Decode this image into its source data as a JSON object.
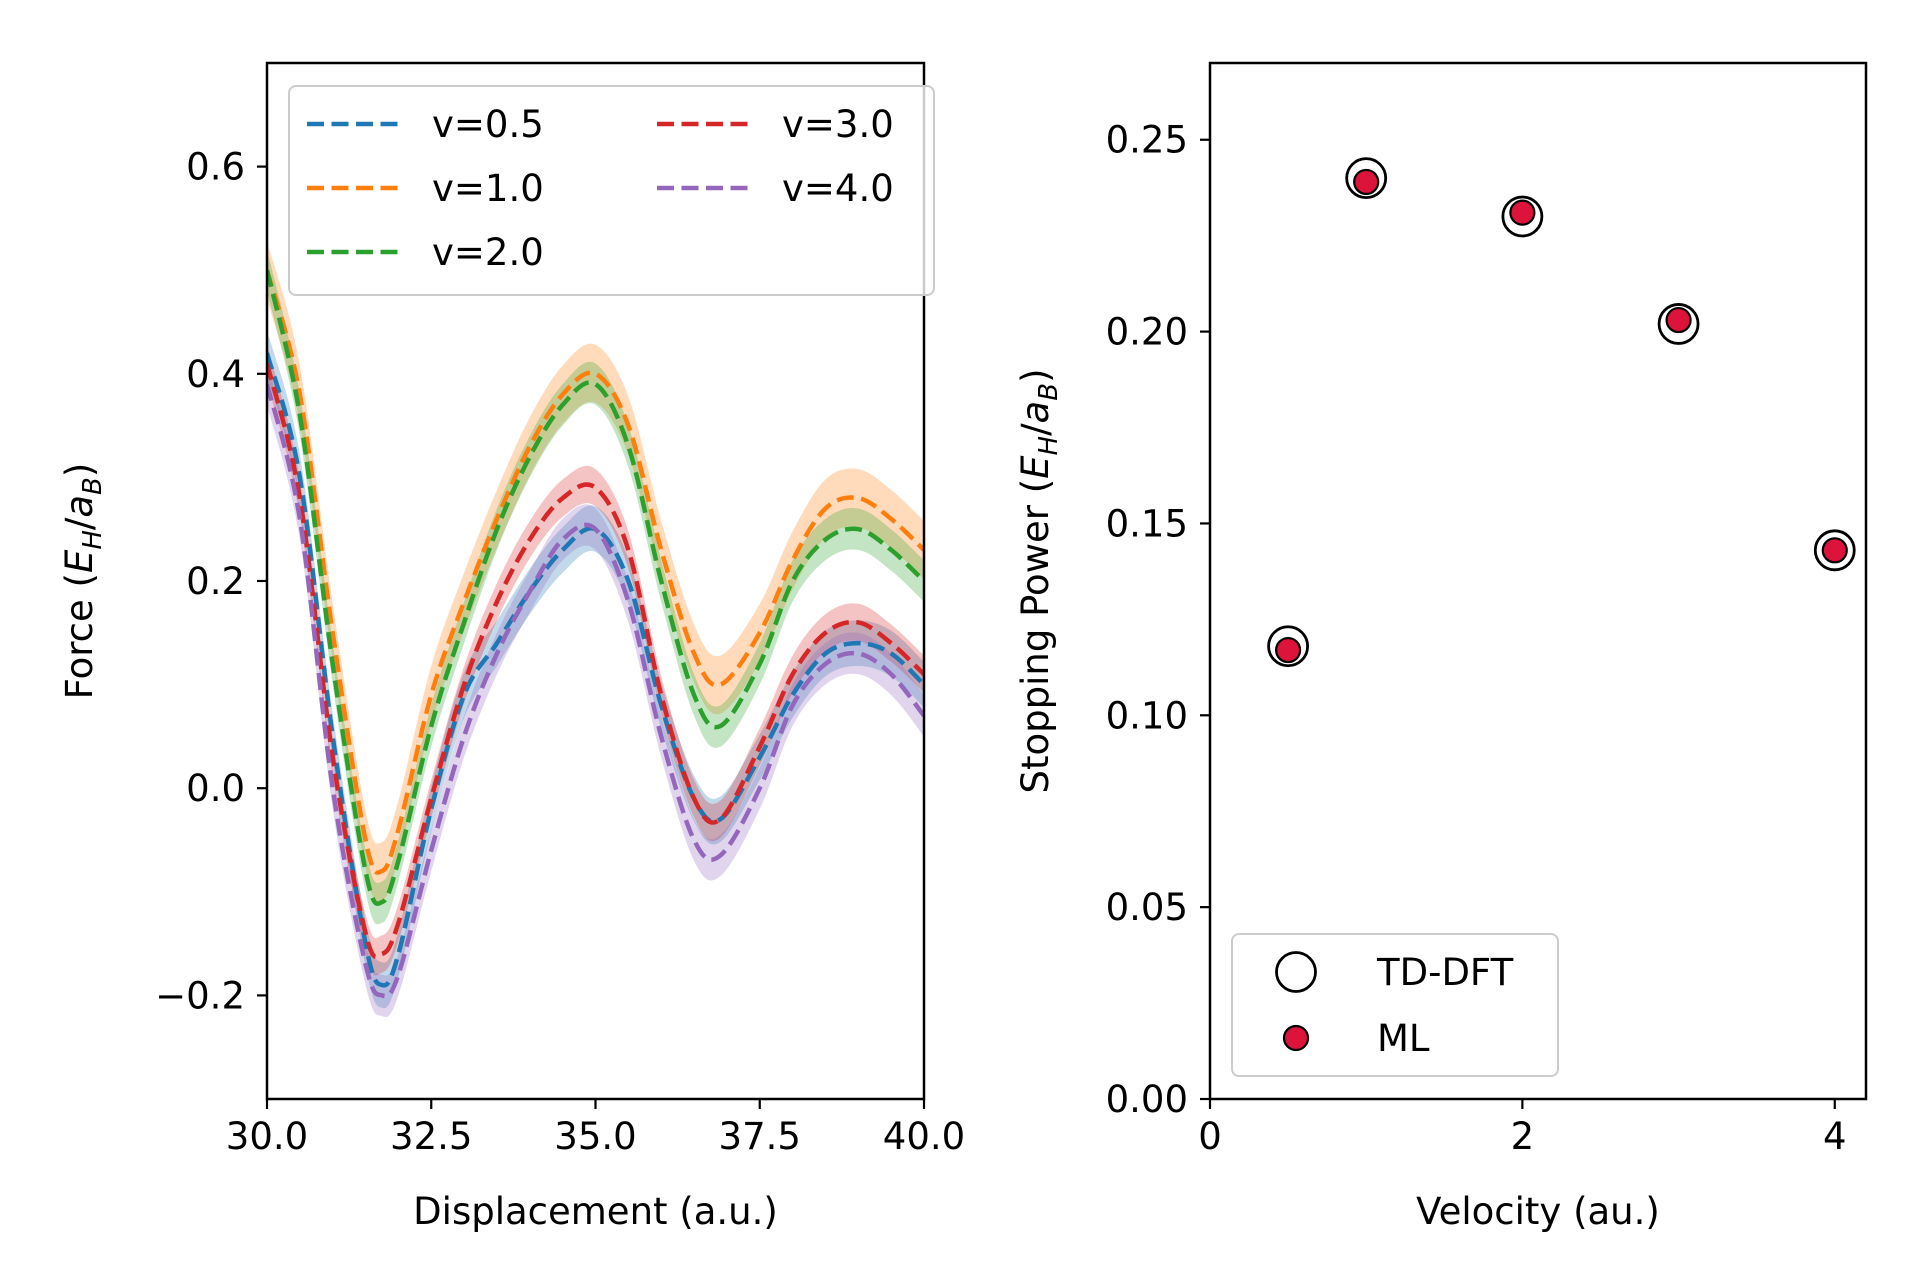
{
  "chart_data": [
    {
      "type": "line",
      "xlabel": "Displacement (a.u.)",
      "ylabel": {
        "prefix": "Force (",
        "symbol_main": "E",
        "symbol_sub": "H",
        "sep": "/",
        "symbol2_main": "a",
        "symbol2_sub": "B",
        "suffix": ")"
      },
      "xlim": [
        30.0,
        40.0
      ],
      "ylim": [
        -0.3,
        0.7
      ],
      "xticks": [
        30.0,
        32.5,
        35.0,
        37.5,
        40.0
      ],
      "xtick_labels": [
        "30.0",
        "32.5",
        "35.0",
        "37.5",
        "40.0"
      ],
      "yticks": [
        -0.2,
        0.0,
        0.2,
        0.4,
        0.6
      ],
      "ytick_labels": [
        "−0.2",
        "0.0",
        "0.2",
        "0.4",
        "0.6"
      ],
      "legend_position": "top-right",
      "legend_columns": 2,
      "series": [
        {
          "name": "v=0.5",
          "color": "#1f77b4",
          "band_halfwidth": 0.022,
          "x": [
            30.0,
            30.5,
            31.0,
            31.5,
            31.75,
            32.0,
            32.5,
            33.0,
            33.5,
            34.0,
            34.5,
            35.0,
            35.5,
            36.0,
            36.5,
            36.9,
            37.5,
            38.0,
            38.5,
            39.0,
            39.5,
            40.0
          ],
          "y": [
            0.42,
            0.3,
            0.05,
            -0.15,
            -0.19,
            -0.16,
            -0.02,
            0.09,
            0.14,
            0.19,
            0.23,
            0.25,
            0.2,
            0.08,
            -0.01,
            -0.03,
            0.03,
            0.09,
            0.13,
            0.14,
            0.13,
            0.1
          ]
        },
        {
          "name": "v=1.0",
          "color": "#ff7f0e",
          "band_halfwidth": 0.028,
          "x": [
            30.0,
            30.5,
            31.0,
            31.5,
            31.75,
            32.0,
            32.5,
            33.0,
            33.5,
            34.0,
            34.5,
            35.0,
            35.5,
            36.0,
            36.5,
            36.9,
            37.5,
            38.0,
            38.5,
            39.0,
            39.5,
            40.0
          ],
          "y": [
            0.5,
            0.38,
            0.15,
            -0.05,
            -0.08,
            -0.04,
            0.09,
            0.18,
            0.26,
            0.33,
            0.38,
            0.4,
            0.35,
            0.23,
            0.13,
            0.1,
            0.15,
            0.22,
            0.27,
            0.28,
            0.26,
            0.23
          ]
        },
        {
          "name": "v=2.0",
          "color": "#2ca02c",
          "band_halfwidth": 0.02,
          "x": [
            30.0,
            30.5,
            31.0,
            31.5,
            31.75,
            32.0,
            32.5,
            33.0,
            33.5,
            34.0,
            34.5,
            35.0,
            35.5,
            36.0,
            36.5,
            36.9,
            37.5,
            38.0,
            38.5,
            39.0,
            39.5,
            40.0
          ],
          "y": [
            0.5,
            0.36,
            0.12,
            -0.08,
            -0.11,
            -0.07,
            0.06,
            0.16,
            0.25,
            0.32,
            0.37,
            0.39,
            0.33,
            0.2,
            0.09,
            0.06,
            0.12,
            0.2,
            0.24,
            0.25,
            0.23,
            0.2
          ]
        },
        {
          "name": "v=3.0",
          "color": "#d62728",
          "band_halfwidth": 0.018,
          "x": [
            30.0,
            30.5,
            31.0,
            31.5,
            31.75,
            32.0,
            32.5,
            33.0,
            33.5,
            34.0,
            34.5,
            35.0,
            35.5,
            36.0,
            36.5,
            36.9,
            37.5,
            38.0,
            38.5,
            39.0,
            39.5,
            40.0
          ],
          "y": [
            0.41,
            0.28,
            0.03,
            -0.14,
            -0.16,
            -0.13,
            -0.01,
            0.1,
            0.18,
            0.24,
            0.28,
            0.29,
            0.23,
            0.09,
            -0.01,
            -0.03,
            0.04,
            0.11,
            0.15,
            0.16,
            0.14,
            0.11
          ]
        },
        {
          "name": "v=4.0",
          "color": "#9467bd",
          "band_halfwidth": 0.02,
          "x": [
            30.0,
            30.5,
            31.0,
            31.5,
            31.75,
            32.0,
            32.5,
            33.0,
            33.5,
            34.0,
            34.5,
            35.0,
            35.5,
            36.0,
            36.5,
            36.9,
            37.5,
            38.0,
            38.5,
            39.0,
            39.5,
            40.0
          ],
          "y": [
            0.39,
            0.26,
            0.0,
            -0.17,
            -0.2,
            -0.18,
            -0.06,
            0.05,
            0.13,
            0.19,
            0.24,
            0.25,
            0.18,
            0.05,
            -0.05,
            -0.065,
            0.0,
            0.08,
            0.12,
            0.13,
            0.11,
            0.07
          ]
        }
      ]
    },
    {
      "type": "scatter",
      "xlabel": "Velocity (au.)",
      "ylabel": {
        "prefix": "Stopping Power (",
        "symbol_main": "E",
        "symbol_sub": "H",
        "sep": "/",
        "symbol2_main": "a",
        "symbol2_sub": "B",
        "suffix": ")"
      },
      "xlim": [
        0,
        4.2
      ],
      "ylim": [
        0.0,
        0.27
      ],
      "xticks": [
        0,
        2,
        4
      ],
      "xtick_labels": [
        "0",
        "2",
        "4"
      ],
      "yticks": [
        0.0,
        0.05,
        0.1,
        0.15,
        0.2,
        0.25
      ],
      "ytick_labels": [
        "0.00",
        "0.05",
        "0.10",
        "0.15",
        "0.20",
        "0.25"
      ],
      "legend_position": "lower-left",
      "series": [
        {
          "name": "TD-DFT",
          "marker": "open-circle",
          "color": "#000000",
          "x": [
            0.5,
            1.0,
            2.0,
            3.0,
            4.0
          ],
          "y": [
            0.118,
            0.24,
            0.23,
            0.202,
            0.143
          ]
        },
        {
          "name": "ML",
          "marker": "filled-circle",
          "color": "#dc143c",
          "x": [
            0.5,
            1.0,
            2.0,
            3.0,
            4.0
          ],
          "y": [
            0.117,
            0.239,
            0.231,
            0.203,
            0.143
          ]
        }
      ]
    }
  ]
}
